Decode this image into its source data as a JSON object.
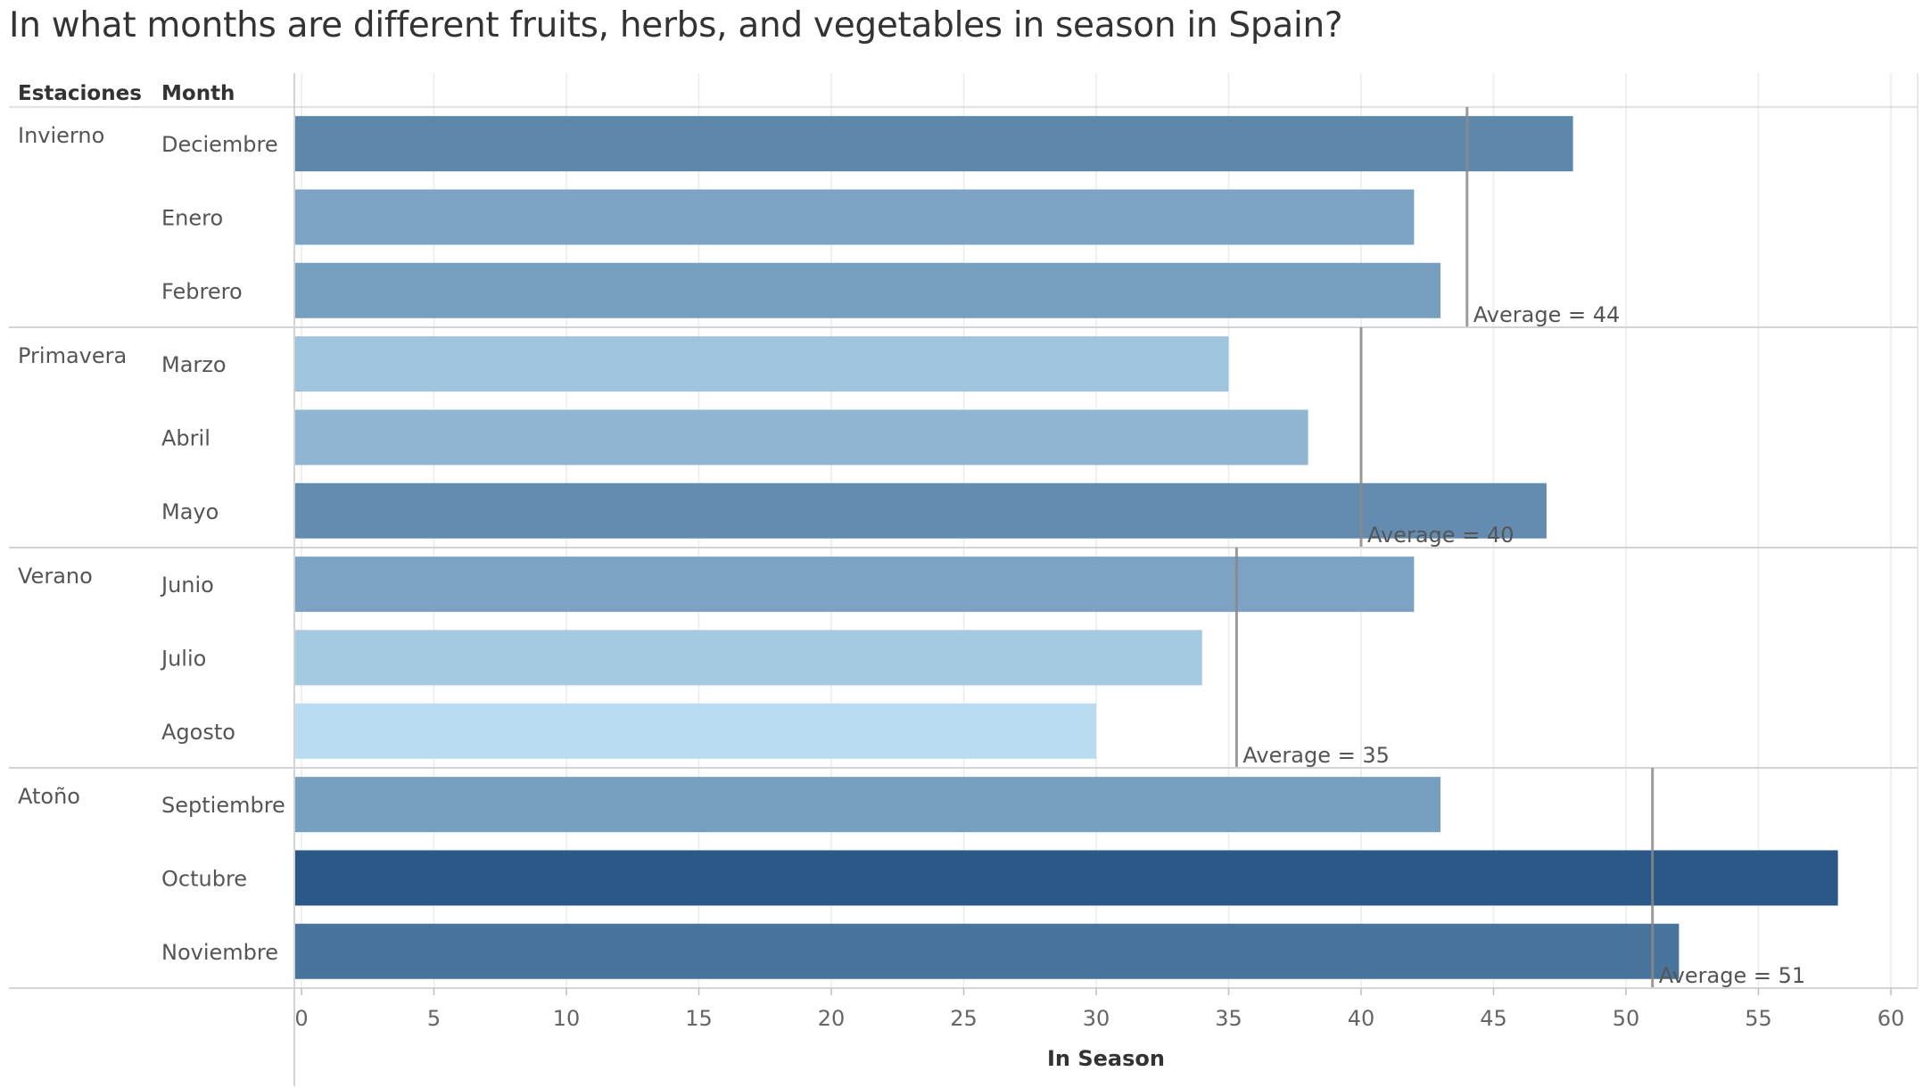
{
  "title": "In what months are different fruits, herbs, and vegetables in season in Spain?",
  "chart_data": {
    "type": "bar",
    "orientation": "horizontal",
    "row_headers": [
      "Estaciones",
      "Month"
    ],
    "xlabel": "In Season",
    "xlim": [
      0,
      60
    ],
    "xticks": [
      0,
      5,
      10,
      15,
      20,
      25,
      30,
      35,
      40,
      45,
      50,
      55,
      60
    ],
    "grid": true,
    "color_scale": {
      "low": "#b9dcf0",
      "high": "#2b5886"
    },
    "groups": [
      {
        "name": "Invierno",
        "average": 44,
        "average_label": "Average = 44",
        "months": [
          {
            "label": "Deciembre",
            "value": 48
          },
          {
            "label": "Enero",
            "value": 42
          },
          {
            "label": "Febrero",
            "value": 43
          }
        ]
      },
      {
        "name": "Primavera",
        "average": 40,
        "average_label": "Average = 40",
        "months": [
          {
            "label": "Marzo",
            "value": 35
          },
          {
            "label": "Abril",
            "value": 38
          },
          {
            "label": "Mayo",
            "value": 47
          }
        ]
      },
      {
        "name": "Verano",
        "average": 35.3,
        "average_label": "Average = 35",
        "months": [
          {
            "label": "Junio",
            "value": 42
          },
          {
            "label": "Julio",
            "value": 34
          },
          {
            "label": "Agosto",
            "value": 30
          }
        ]
      },
      {
        "name": "Atoño",
        "average": 51,
        "average_label": "Average = 51",
        "months": [
          {
            "label": "Septiembre",
            "value": 43
          },
          {
            "label": "Octubre",
            "value": 58
          },
          {
            "label": "Noviembre",
            "value": 52
          }
        ]
      }
    ]
  }
}
